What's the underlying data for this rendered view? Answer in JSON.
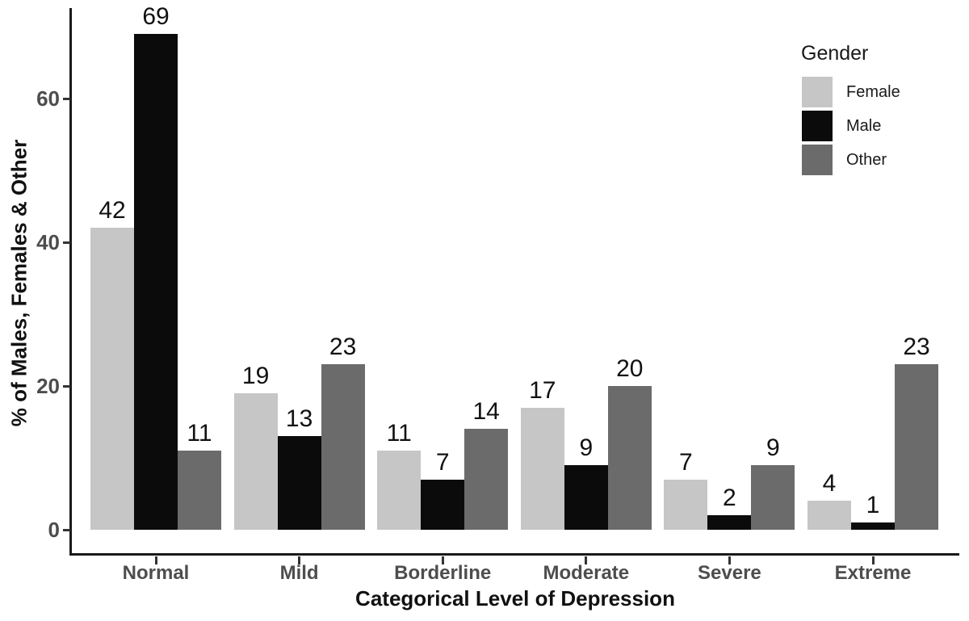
{
  "chart_data": {
    "type": "bar",
    "title": "",
    "xlabel": "Categorical Level of Depression",
    "ylabel": "% of Males, Females & Other",
    "legend_title": "Gender",
    "legend_position": "top-right",
    "grid": false,
    "categories": [
      "Normal",
      "Mild",
      "Borderline",
      "Moderate",
      "Severe",
      "Extreme"
    ],
    "series": [
      {
        "name": "Female",
        "color": "#c6c6c6",
        "values": [
          42,
          19,
          11,
          17,
          7,
          4
        ]
      },
      {
        "name": "Male",
        "color": "#0b0b0b",
        "values": [
          69,
          13,
          7,
          9,
          2,
          1
        ]
      },
      {
        "name": "Other",
        "color": "#6b6b6b",
        "values": [
          11,
          23,
          14,
          20,
          9,
          23
        ]
      }
    ],
    "bar_value_labels": true,
    "yticks": [
      0,
      20,
      40,
      60
    ],
    "ylim": [
      0,
      73
    ]
  },
  "style_colors": {
    "axis_line": "#1a1a1a",
    "tick_text": "#4d4d4d",
    "label_text": "#111111",
    "background": "#ffffff"
  }
}
